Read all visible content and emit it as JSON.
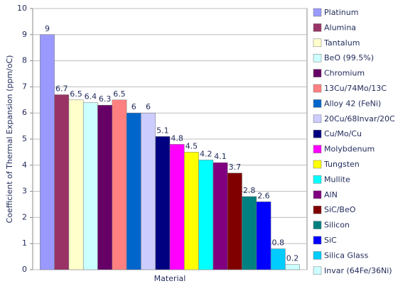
{
  "chart_data": {
    "type": "bar",
    "y_label": "Coefficient of Thermal Expansion (ppm/oC)",
    "categories": [
      "Material"
    ],
    "ylim": [
      0,
      10
    ],
    "yticks": [
      0,
      1,
      2,
      3,
      4,
      5,
      6,
      7,
      8,
      9,
      10
    ],
    "grid": true,
    "legend": "right",
    "series": [
      {
        "name": "Platinum",
        "color": "#9999ff",
        "values": [
          9
        ]
      },
      {
        "name": "Alumina",
        "color": "#993366",
        "values": [
          6.7
        ]
      },
      {
        "name": "Tantalum",
        "color": "#ffffcc",
        "values": [
          6.5
        ]
      },
      {
        "name": "BeO (99.5%)",
        "color": "#ccffff",
        "values": [
          6.4
        ]
      },
      {
        "name": "Chromium",
        "color": "#660066",
        "values": [
          6.3
        ]
      },
      {
        "name": "13Cu/74Mo/13C",
        "color": "#ff8080",
        "values": [
          6.5
        ]
      },
      {
        "name": "Alloy 42 (FeNi)",
        "color": "#0066cc",
        "values": [
          6
        ]
      },
      {
        "name": "20Cu/68Invar/20C",
        "color": "#ccccff",
        "values": [
          6
        ]
      },
      {
        "name": "Cu/Mo/Cu",
        "color": "#000080",
        "values": [
          5.1
        ]
      },
      {
        "name": "Molybdenum",
        "color": "#ff00ff",
        "values": [
          4.8
        ]
      },
      {
        "name": "Tungsten",
        "color": "#ffff00",
        "values": [
          4.5
        ]
      },
      {
        "name": "Mullite",
        "color": "#00ffff",
        "values": [
          4.2
        ]
      },
      {
        "name": "AlN",
        "color": "#800080",
        "values": [
          4.1
        ]
      },
      {
        "name": "SiC/BeO",
        "color": "#800000",
        "values": [
          3.7
        ]
      },
      {
        "name": "Silicon",
        "color": "#008080",
        "values": [
          2.8
        ]
      },
      {
        "name": "SiC",
        "color": "#0000ff",
        "values": [
          2.6
        ]
      },
      {
        "name": "Silica Glass",
        "color": "#00ccff",
        "values": [
          0.8
        ]
      },
      {
        "name": "Invar (64Fe/36Ni)",
        "color": "#ccffff",
        "values": [
          0.2
        ]
      }
    ]
  }
}
